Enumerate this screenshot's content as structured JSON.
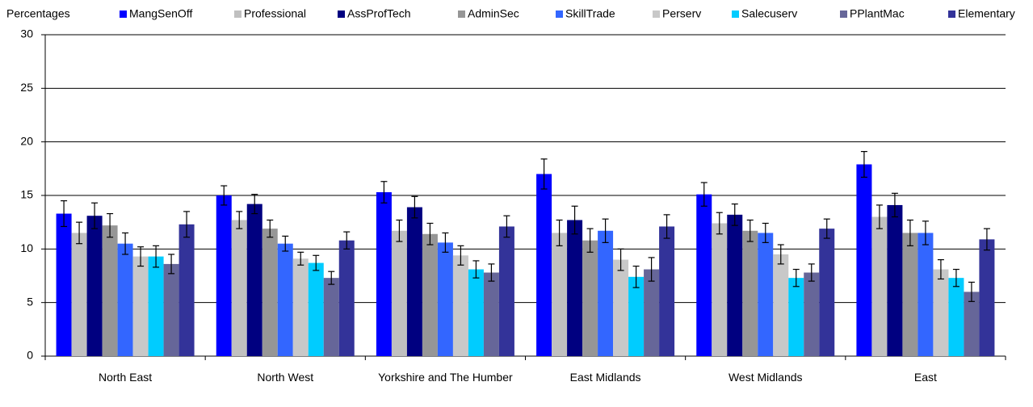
{
  "chart_data": {
    "type": "bar",
    "y_label": "Percentages",
    "categories": [
      "North East",
      "North West",
      "Yorkshire and The Humber",
      "East Midlands",
      "West Midlands",
      "East"
    ],
    "ylim": [
      0,
      30
    ],
    "yticks": [
      0,
      5,
      10,
      15,
      20,
      25,
      30
    ],
    "grid": true,
    "series": [
      {
        "name": "MangSenOff",
        "color": "#0000ff",
        "values": [
          13.3,
          15.0,
          15.3,
          17.0,
          15.1,
          17.9
        ],
        "errors": [
          1.2,
          0.9,
          1.0,
          1.4,
          1.1,
          1.2
        ]
      },
      {
        "name": "Professional",
        "color": "#c0c0c0",
        "values": [
          11.5,
          12.7,
          11.7,
          11.5,
          12.4,
          13.0
        ],
        "errors": [
          1.0,
          0.8,
          1.0,
          1.2,
          1.0,
          1.1
        ]
      },
      {
        "name": "AssProfTech",
        "color": "#000080",
        "values": [
          13.1,
          14.2,
          13.9,
          12.7,
          13.2,
          14.1
        ],
        "errors": [
          1.2,
          0.9,
          1.0,
          1.3,
          1.0,
          1.1
        ]
      },
      {
        "name": "AdminSec",
        "color": "#969696",
        "values": [
          12.2,
          11.9,
          11.4,
          10.8,
          11.7,
          11.5
        ],
        "errors": [
          1.1,
          0.8,
          1.0,
          1.1,
          1.0,
          1.2
        ]
      },
      {
        "name": "SkillTrade",
        "color": "#3366ff",
        "values": [
          10.5,
          10.5,
          10.6,
          11.7,
          11.5,
          11.5
        ],
        "errors": [
          1.0,
          0.7,
          0.9,
          1.1,
          0.9,
          1.1
        ]
      },
      {
        "name": "Perserv",
        "color": "#c8c8c8",
        "values": [
          9.3,
          9.1,
          9.4,
          9.0,
          9.5,
          8.1
        ],
        "errors": [
          0.9,
          0.6,
          0.9,
          1.0,
          0.9,
          0.9
        ]
      },
      {
        "name": "Salecuserv",
        "color": "#00ccff",
        "values": [
          9.3,
          8.7,
          8.1,
          7.4,
          7.3,
          7.3
        ],
        "errors": [
          1.0,
          0.7,
          0.8,
          1.0,
          0.8,
          0.8
        ]
      },
      {
        "name": "PPlantMac",
        "color": "#666699",
        "values": [
          8.6,
          7.3,
          7.8,
          8.1,
          7.8,
          6.0
        ],
        "errors": [
          0.9,
          0.6,
          0.8,
          1.1,
          0.8,
          0.9
        ]
      },
      {
        "name": "Elementary",
        "color": "#333399",
        "values": [
          12.3,
          10.8,
          12.1,
          12.1,
          11.9,
          10.9
        ],
        "errors": [
          1.2,
          0.8,
          1.0,
          1.1,
          0.9,
          1.0
        ]
      }
    ]
  }
}
